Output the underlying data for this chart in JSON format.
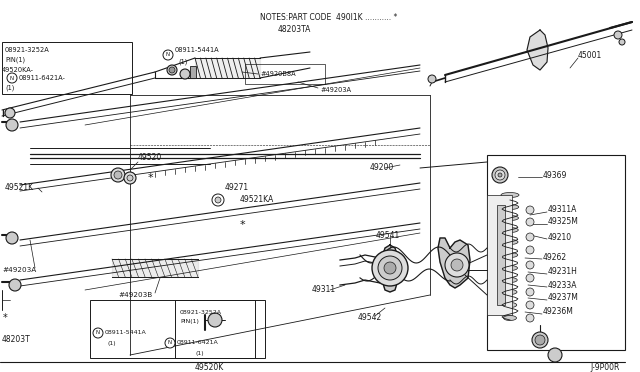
{
  "bg_color": "#ffffff",
  "line_color": "#1a1a1a",
  "text_color": "#1a1a1a",
  "fig_w": 6.4,
  "fig_h": 3.72,
  "dpi": 100,
  "notes_text": "NOTES:PART CODE  490I1K ........... *",
  "ref_48203TA": "48203TA",
  "footer": "J-9P00R"
}
